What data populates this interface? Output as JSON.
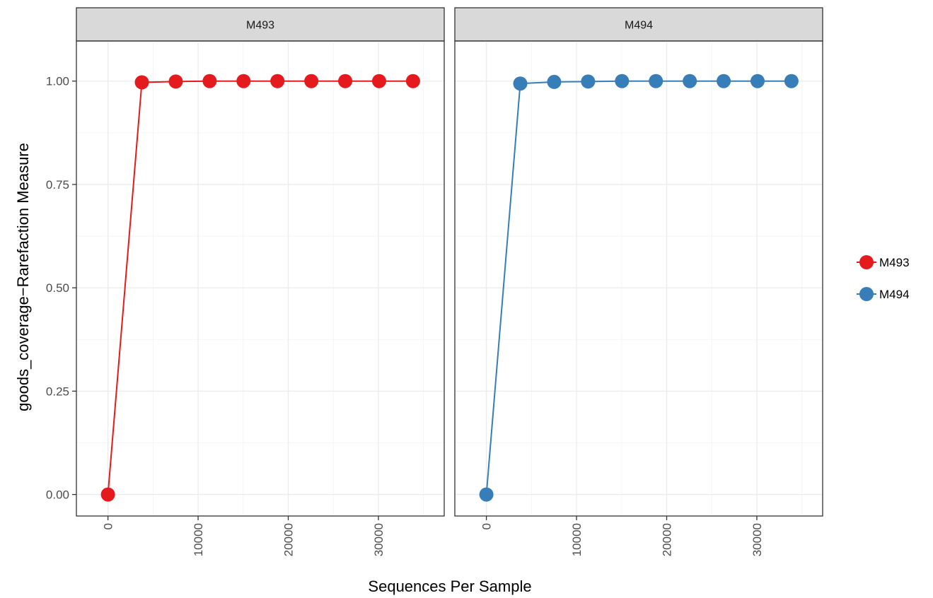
{
  "chart_data": {
    "type": "line",
    "facets": [
      "M493",
      "M494"
    ],
    "xlabel": "Sequences Per Sample",
    "ylabel": "goods_coverage−Rarefaction Measure",
    "xlim": [
      -3500,
      37300
    ],
    "ylim": [
      -0.052,
      1.097
    ],
    "x_ticks": [
      0,
      10000,
      20000,
      30000
    ],
    "x_tick_labels": [
      "0",
      "10000",
      "20000",
      "30000"
    ],
    "y_ticks": [
      0,
      0.25,
      0.5,
      0.75,
      1.0
    ],
    "y_tick_labels": [
      "0.00",
      "0.25",
      "0.50",
      "0.75",
      "1.00"
    ],
    "grid": true,
    "legend_position": "right",
    "series": [
      {
        "name": "M493",
        "color": "#E41A1C",
        "x": [
          0,
          3760,
          7520,
          11280,
          15040,
          18800,
          22560,
          26320,
          30080,
          33840
        ],
        "values": [
          0.0,
          0.997,
          0.999,
          1.0,
          1.0,
          1.0,
          1.0,
          1.0,
          1.0,
          1.0
        ]
      },
      {
        "name": "M494",
        "color": "#377EB8",
        "x": [
          0,
          3760,
          7520,
          11280,
          15040,
          18800,
          22560,
          26320,
          30080,
          33840
        ],
        "values": [
          0.0,
          0.994,
          0.998,
          0.999,
          1.0,
          1.0,
          1.0,
          1.0,
          1.0,
          1.0
        ]
      }
    ]
  }
}
